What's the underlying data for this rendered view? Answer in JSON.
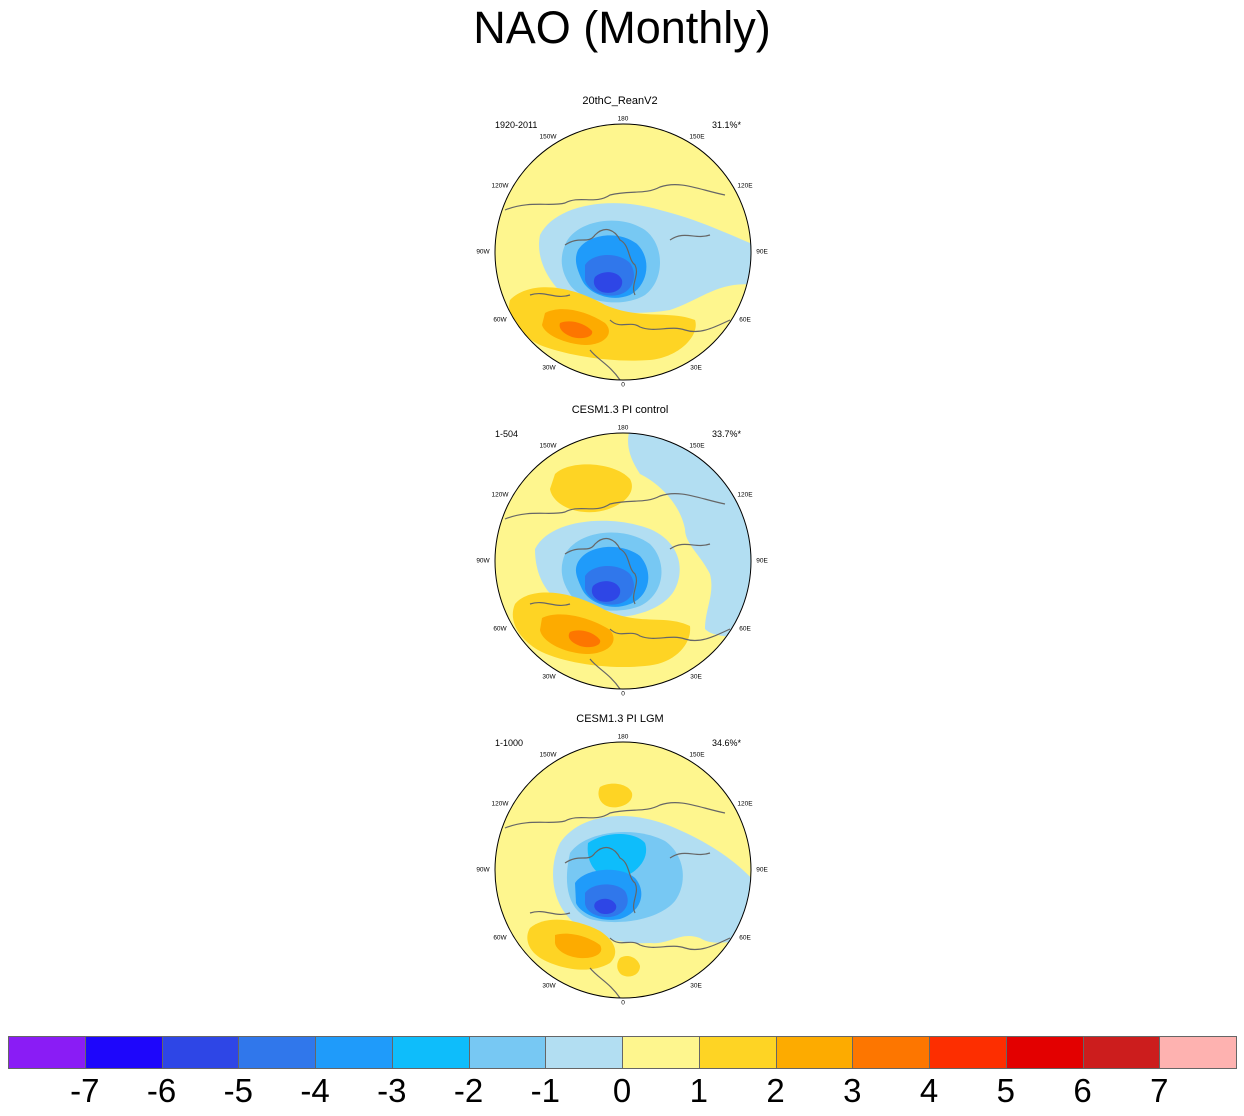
{
  "title": "NAO (Monthly)",
  "longitude_labels": [
    "180",
    "150E",
    "120E",
    "90E",
    "60E",
    "30E",
    "0",
    "30W",
    "60W",
    "90W",
    "120W",
    "150W"
  ],
  "panels": [
    {
      "name": "20thC_ReanV2",
      "years": "1920-2011",
      "variance": "31.1%*"
    },
    {
      "name": "CESM1.3 PI control",
      "years": "1-504",
      "variance": "33.7%*"
    },
    {
      "name": "CESM1.3 PI LGM",
      "years": "1-1000",
      "variance": "34.6%*"
    }
  ],
  "colorbar": {
    "labels": [
      "-7",
      "-6",
      "-5",
      "-4",
      "-3",
      "-2",
      "-1",
      "0",
      "1",
      "2",
      "3",
      "4",
      "5",
      "6",
      "7"
    ],
    "colors": [
      "#8a1cf5",
      "#1e06fb",
      "#2e46e6",
      "#3077eb",
      "#1f9bfa",
      "#0ebdfb",
      "#77c8f3",
      "#b2def2",
      "#fef68e",
      "#fed424",
      "#fdab00",
      "#fd7600",
      "#fd2e00",
      "#e30000",
      "#cc1d1d",
      "#feb2b0"
    ]
  }
}
